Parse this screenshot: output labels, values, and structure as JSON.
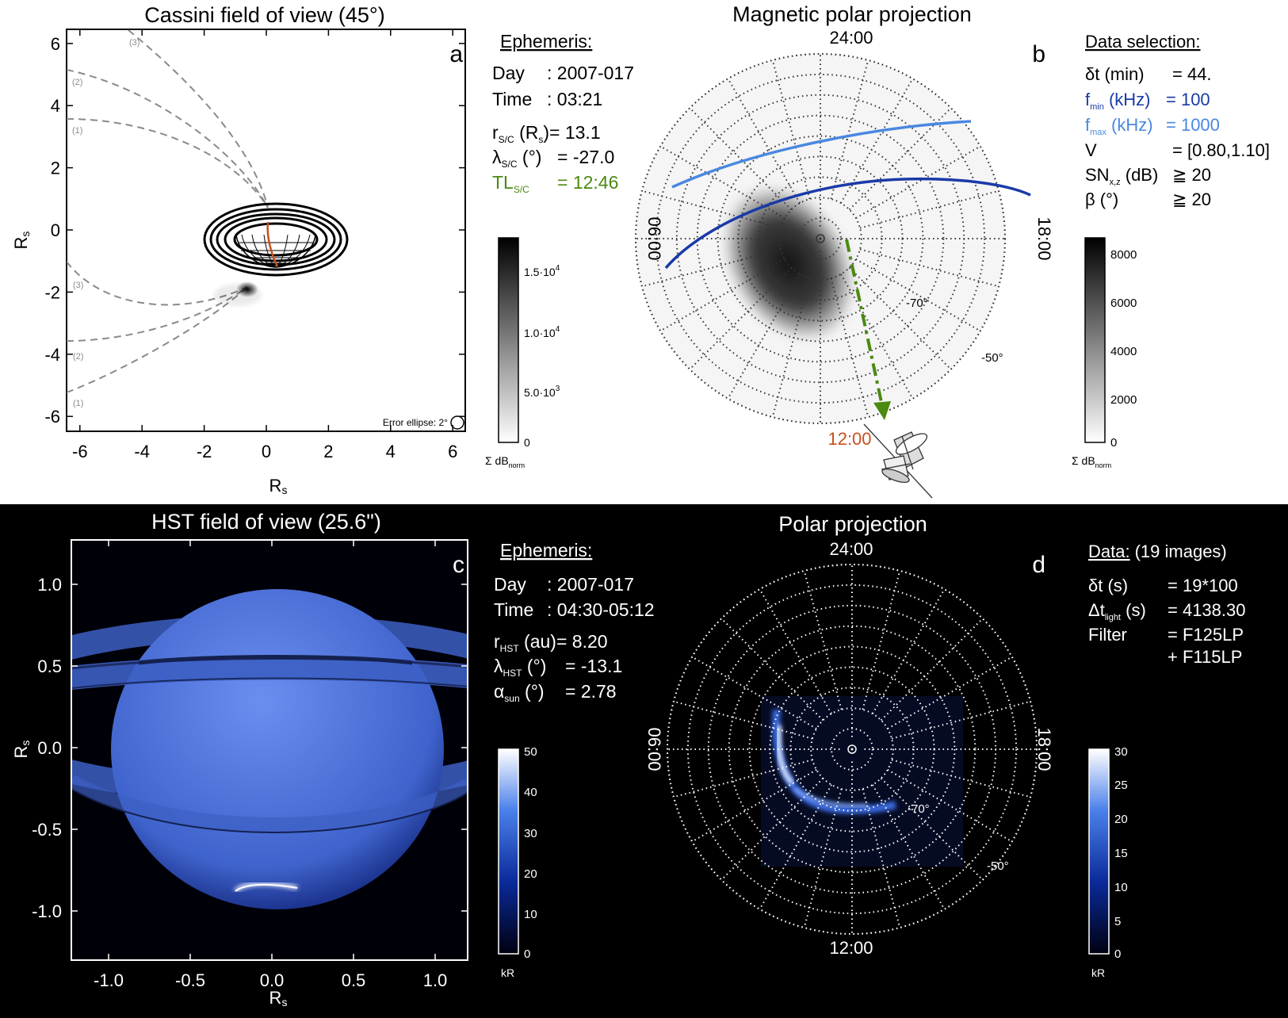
{
  "panel_a": {
    "title": "Cassini field of view (45°)",
    "letter": "a",
    "xlabel": "R_s",
    "ylabel": "R_s",
    "ticks": [
      "-6",
      "-4",
      "-2",
      "0",
      "2",
      "4",
      "6"
    ],
    "arc_labels": [
      "(3)",
      "(2)",
      "(1)",
      "(3)",
      "(2)",
      "(1)"
    ],
    "error_ellipse": "Error ellipse:  2°",
    "ephemeris_title": "Ephemeris:",
    "eph": {
      "day_label": "Day",
      "day_value": ": 2007-017",
      "time_label": "Time",
      "time_value": ": 03:21",
      "r_label": "r",
      "r_sub": "S/C",
      "r_unit": " (R",
      "r_unit_sub": "s",
      "r_value": ")= 13.1",
      "lat_label": "λ",
      "lat_sub": "S/C",
      "lat_unit": " (°)",
      "lat_value": "= -27.0",
      "tl_label": "TL",
      "tl_sub": "S/C",
      "tl_value": "= 12:46"
    },
    "colorbar": {
      "ticks": [
        "1.5·10",
        "1.0·10",
        "5.0·10",
        "0"
      ],
      "exps": [
        "4",
        "4",
        "3",
        ""
      ],
      "label": "Σ dB",
      "label_sub": "norm"
    }
  },
  "panel_b": {
    "title": "Magnetic polar projection",
    "letter": "b",
    "lt_labels": {
      "top": "24:00",
      "left": "06:00",
      "right": "18:00",
      "bottom": "12:00"
    },
    "lat_labels": [
      "-70°",
      "-50°"
    ],
    "selection_title": "Data selection:",
    "sel": [
      {
        "label": "δt (min)",
        "value": "= 44."
      },
      {
        "label": "f",
        "sub": "min",
        "unit": " (kHz)",
        "value": "= 100"
      },
      {
        "label": "f",
        "sub": "max",
        "unit": " (kHz)",
        "value": "= 1000"
      },
      {
        "label": "V",
        "value": "= [0.80,1.10]"
      },
      {
        "label": "SN",
        "sub": "x,z",
        "unit": " (dB)",
        "value": "≧ 20"
      },
      {
        "label": "β (°)",
        "value": "≧ 20"
      }
    ],
    "colorbar": {
      "ticks": [
        "8000",
        "6000",
        "4000",
        "2000",
        "0"
      ],
      "label": "Σ dB",
      "label_sub": "norm"
    }
  },
  "panel_c": {
    "title": "HST field of view (25.6\")",
    "letter": "c",
    "xlabel": "R_s",
    "ylabel": "R_s",
    "xticks": [
      "-1.0",
      "-0.5",
      "0.0",
      "0.5",
      "1.0"
    ],
    "yticks": [
      "1.0",
      "0.5",
      "0.0",
      "-0.5",
      "-1.0"
    ],
    "ephemeris_title": "Ephemeris:",
    "eph": {
      "day_label": "Day",
      "day_value": ": 2007-017",
      "time_label": "Time",
      "time_value": ": 04:30-05:12",
      "r_label": "r",
      "r_sub": "HST",
      "r_unit": " (au)",
      "r_value": "= 8.20",
      "lat_label": "λ",
      "lat_sub": "HST",
      "lat_unit": " (°)",
      "lat_value": "= -13.1",
      "a_label": "α",
      "a_sub": "sun",
      "a_unit": " (°)",
      "a_value": "= 2.78"
    },
    "colorbar": {
      "ticks": [
        "50",
        "40",
        "30",
        "20",
        "10",
        "0"
      ],
      "label": "kR"
    }
  },
  "panel_d": {
    "title": "Polar projection",
    "letter": "d",
    "lt_labels": {
      "top": "24:00",
      "left": "06:00",
      "right": "18:00",
      "bottom": "12:00"
    },
    "lat_labels": [
      "-70°",
      "-50°"
    ],
    "data_title": "Data:",
    "data_count": "(19 images)",
    "rows": [
      {
        "label": "δt (s)",
        "value": "= 19*100"
      },
      {
        "label": "Δt",
        "sub": "light",
        "unit": " (s)",
        "value": "= 4138.30"
      },
      {
        "label": "Filter",
        "value": "= F125LP"
      },
      {
        "label": "",
        "value": "+ F115LP"
      }
    ],
    "colorbar": {
      "ticks": [
        "30",
        "25",
        "20",
        "15",
        "10",
        "5",
        "0"
      ],
      "label": "kR"
    }
  },
  "colors": {
    "green": "#4a8a10",
    "orange": "#c8501c",
    "dark_blue": "#1a3aa8",
    "light_blue": "#4a88e0"
  }
}
